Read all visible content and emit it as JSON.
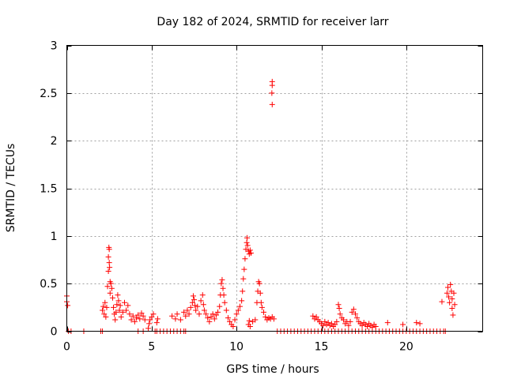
{
  "chart_data": {
    "type": "scatter",
    "title": "Day 182 of 2024, SRMTID for receiver larr",
    "xlabel": "GPS time / hours",
    "ylabel": "SRMTID / TECUs",
    "xlim": [
      0,
      24.5
    ],
    "ylim": [
      0,
      3
    ],
    "xticks": [
      0,
      5,
      10,
      15,
      20
    ],
    "xtick_labels": [
      "0",
      "5",
      "10",
      "15",
      "20"
    ],
    "yticks": [
      0,
      0.5,
      1,
      1.5,
      2,
      2.5,
      3
    ],
    "ytick_labels": [
      "0",
      "0.5",
      "1",
      "1.5",
      "2",
      "2.5",
      "3"
    ],
    "grid": true,
    "marker": "+",
    "marker_color": "#ff0000",
    "series": [
      {
        "name": "SRMTID",
        "points": [
          [
            0.0,
            0.37
          ],
          [
            0.0,
            0.31
          ],
          [
            0.05,
            0.27
          ],
          [
            0.1,
            0.0
          ],
          [
            0.25,
            0.0
          ],
          [
            1.0,
            0.0
          ],
          [
            2.0,
            0.0
          ],
          [
            2.1,
            0.0
          ],
          [
            2.1,
            0.22
          ],
          [
            2.15,
            0.26
          ],
          [
            2.2,
            0.18
          ],
          [
            2.25,
            0.3
          ],
          [
            2.3,
            0.15
          ],
          [
            2.35,
            0.25
          ],
          [
            2.4,
            0.47
          ],
          [
            2.45,
            0.63
          ],
          [
            2.45,
            0.78
          ],
          [
            2.48,
            0.88
          ],
          [
            2.5,
            0.86
          ],
          [
            2.5,
            0.72
          ],
          [
            2.52,
            0.67
          ],
          [
            2.55,
            0.52
          ],
          [
            2.55,
            0.4
          ],
          [
            2.6,
            0.5
          ],
          [
            2.65,
            0.45
          ],
          [
            2.7,
            0.35
          ],
          [
            2.75,
            0.25
          ],
          [
            2.8,
            0.18
          ],
          [
            2.85,
            0.12
          ],
          [
            2.9,
            0.2
          ],
          [
            2.95,
            0.28
          ],
          [
            3.0,
            0.38
          ],
          [
            3.05,
            0.32
          ],
          [
            3.1,
            0.22
          ],
          [
            3.15,
            0.27
          ],
          [
            3.2,
            0.15
          ],
          [
            3.3,
            0.2
          ],
          [
            3.4,
            0.3
          ],
          [
            3.5,
            0.22
          ],
          [
            3.6,
            0.27
          ],
          [
            3.7,
            0.18
          ],
          [
            3.8,
            0.12
          ],
          [
            3.9,
            0.16
          ],
          [
            4.0,
            0.1
          ],
          [
            4.1,
            0.14
          ],
          [
            4.2,
            0.17
          ],
          [
            4.3,
            0.13
          ],
          [
            4.4,
            0.19
          ],
          [
            4.5,
            0.16
          ],
          [
            4.6,
            0.12
          ],
          [
            4.2,
            0.0
          ],
          [
            4.5,
            0.0
          ],
          [
            4.8,
            0.03
          ],
          [
            4.85,
            0.08
          ],
          [
            4.9,
            0.12
          ],
          [
            5.0,
            0.15
          ],
          [
            5.1,
            0.18
          ],
          [
            5.2,
            0.0
          ],
          [
            5.3,
            0.09
          ],
          [
            5.35,
            0.13
          ],
          [
            5.3,
            0.0
          ],
          [
            5.5,
            0.0
          ],
          [
            5.7,
            0.0
          ],
          [
            5.9,
            0.0
          ],
          [
            6.1,
            0.0
          ],
          [
            6.3,
            0.0
          ],
          [
            6.5,
            0.0
          ],
          [
            6.7,
            0.0
          ],
          [
            6.9,
            0.0
          ],
          [
            7.0,
            0.0
          ],
          [
            6.2,
            0.16
          ],
          [
            6.4,
            0.13
          ],
          [
            6.5,
            0.18
          ],
          [
            6.7,
            0.12
          ],
          [
            6.9,
            0.2
          ],
          [
            7.0,
            0.16
          ],
          [
            7.1,
            0.22
          ],
          [
            7.2,
            0.18
          ],
          [
            7.3,
            0.25
          ],
          [
            7.4,
            0.3
          ],
          [
            7.45,
            0.37
          ],
          [
            7.5,
            0.33
          ],
          [
            7.55,
            0.27
          ],
          [
            7.6,
            0.22
          ],
          [
            7.7,
            0.26
          ],
          [
            7.8,
            0.18
          ],
          [
            7.9,
            0.32
          ],
          [
            8.0,
            0.38
          ],
          [
            8.05,
            0.28
          ],
          [
            8.1,
            0.22
          ],
          [
            8.2,
            0.18
          ],
          [
            8.3,
            0.14
          ],
          [
            8.4,
            0.1
          ],
          [
            8.5,
            0.15
          ],
          [
            8.6,
            0.18
          ],
          [
            8.7,
            0.13
          ],
          [
            8.8,
            0.17
          ],
          [
            8.9,
            0.2
          ],
          [
            9.0,
            0.26
          ],
          [
            9.05,
            0.38
          ],
          [
            9.1,
            0.5
          ],
          [
            9.15,
            0.54
          ],
          [
            9.2,
            0.45
          ],
          [
            9.25,
            0.38
          ],
          [
            9.3,
            0.3
          ],
          [
            9.4,
            0.22
          ],
          [
            9.5,
            0.14
          ],
          [
            9.6,
            0.1
          ],
          [
            9.7,
            0.07
          ],
          [
            9.8,
            0.05
          ],
          [
            9.9,
            0.12
          ],
          [
            10.0,
            0.18
          ],
          [
            10.1,
            0.22
          ],
          [
            10.2,
            0.26
          ],
          [
            10.3,
            0.32
          ],
          [
            10.35,
            0.42
          ],
          [
            10.4,
            0.55
          ],
          [
            10.45,
            0.65
          ],
          [
            10.5,
            0.76
          ],
          [
            10.55,
            0.86
          ],
          [
            10.6,
            0.93
          ],
          [
            10.62,
            0.98
          ],
          [
            10.65,
            0.9
          ],
          [
            10.7,
            0.84
          ],
          [
            10.75,
            0.81
          ],
          [
            10.8,
            0.85
          ],
          [
            10.85,
            0.82
          ],
          [
            10.7,
            0.07
          ],
          [
            10.75,
            0.11
          ],
          [
            10.8,
            0.05
          ],
          [
            10.95,
            0.1
          ],
          [
            11.1,
            0.12
          ],
          [
            11.2,
            0.3
          ],
          [
            11.25,
            0.42
          ],
          [
            11.3,
            0.52
          ],
          [
            11.35,
            0.5
          ],
          [
            11.4,
            0.4
          ],
          [
            11.45,
            0.3
          ],
          [
            11.5,
            0.25
          ],
          [
            11.6,
            0.2
          ],
          [
            11.7,
            0.15
          ],
          [
            11.8,
            0.12
          ],
          [
            11.9,
            0.14
          ],
          [
            12.0,
            0.13
          ],
          [
            12.1,
            0.15
          ],
          [
            12.2,
            0.13
          ],
          [
            12.1,
            2.62
          ],
          [
            12.1,
            2.58
          ],
          [
            12.08,
            2.5
          ],
          [
            12.1,
            2.38
          ],
          [
            12.4,
            0.0
          ],
          [
            12.6,
            0.0
          ],
          [
            12.8,
            0.0
          ],
          [
            13.0,
            0.0
          ],
          [
            13.2,
            0.0
          ],
          [
            13.4,
            0.0
          ],
          [
            13.6,
            0.0
          ],
          [
            13.8,
            0.0
          ],
          [
            14.0,
            0.0
          ],
          [
            14.2,
            0.0
          ],
          [
            14.4,
            0.0
          ],
          [
            14.6,
            0.0
          ],
          [
            14.8,
            0.0
          ],
          [
            15.0,
            0.0
          ],
          [
            15.2,
            0.0
          ],
          [
            15.4,
            0.0
          ],
          [
            15.6,
            0.0
          ],
          [
            15.8,
            0.0
          ],
          [
            16.0,
            0.0
          ],
          [
            16.2,
            0.0
          ],
          [
            16.4,
            0.0
          ],
          [
            16.6,
            0.0
          ],
          [
            16.8,
            0.0
          ],
          [
            17.0,
            0.0
          ],
          [
            17.2,
            0.0
          ],
          [
            17.4,
            0.0
          ],
          [
            17.6,
            0.0
          ],
          [
            17.8,
            0.0
          ],
          [
            18.0,
            0.0
          ],
          [
            18.2,
            0.0
          ],
          [
            18.4,
            0.0
          ],
          [
            18.6,
            0.0
          ],
          [
            18.8,
            0.0
          ],
          [
            19.0,
            0.0
          ],
          [
            19.2,
            0.0
          ],
          [
            19.4,
            0.0
          ],
          [
            19.6,
            0.0
          ],
          [
            19.8,
            0.0
          ],
          [
            20.0,
            0.0
          ],
          [
            20.2,
            0.0
          ],
          [
            20.4,
            0.0
          ],
          [
            20.6,
            0.0
          ],
          [
            20.8,
            0.0
          ],
          [
            21.0,
            0.0
          ],
          [
            21.2,
            0.0
          ],
          [
            21.4,
            0.0
          ],
          [
            21.6,
            0.0
          ],
          [
            21.8,
            0.0
          ],
          [
            22.0,
            0.0
          ],
          [
            22.2,
            0.0
          ],
          [
            22.3,
            0.0
          ],
          [
            14.5,
            0.16
          ],
          [
            14.6,
            0.13
          ],
          [
            14.7,
            0.15
          ],
          [
            14.8,
            0.12
          ],
          [
            14.9,
            0.1
          ],
          [
            15.0,
            0.08
          ],
          [
            15.1,
            0.06
          ],
          [
            15.2,
            0.1
          ],
          [
            15.3,
            0.07
          ],
          [
            15.4,
            0.09
          ],
          [
            15.5,
            0.06
          ],
          [
            15.6,
            0.08
          ],
          [
            15.7,
            0.05
          ],
          [
            15.8,
            0.07
          ],
          [
            15.9,
            0.1
          ],
          [
            16.0,
            0.28
          ],
          [
            16.05,
            0.24
          ],
          [
            16.1,
            0.18
          ],
          [
            16.2,
            0.14
          ],
          [
            16.3,
            0.12
          ],
          [
            16.4,
            0.08
          ],
          [
            16.5,
            0.1
          ],
          [
            16.6,
            0.06
          ],
          [
            16.7,
            0.1
          ],
          [
            16.8,
            0.2
          ],
          [
            16.9,
            0.23
          ],
          [
            17.0,
            0.18
          ],
          [
            17.1,
            0.14
          ],
          [
            17.2,
            0.1
          ],
          [
            17.3,
            0.08
          ],
          [
            17.4,
            0.06
          ],
          [
            17.5,
            0.09
          ],
          [
            17.6,
            0.07
          ],
          [
            17.7,
            0.05
          ],
          [
            17.8,
            0.08
          ],
          [
            17.9,
            0.06
          ],
          [
            18.0,
            0.04
          ],
          [
            18.1,
            0.07
          ],
          [
            18.2,
            0.05
          ],
          [
            18.9,
            0.09
          ],
          [
            19.8,
            0.07
          ],
          [
            20.6,
            0.09
          ],
          [
            20.8,
            0.08
          ],
          [
            22.1,
            0.31
          ],
          [
            22.4,
            0.4
          ],
          [
            22.45,
            0.46
          ],
          [
            22.5,
            0.36
          ],
          [
            22.55,
            0.3
          ],
          [
            22.6,
            0.49
          ],
          [
            22.65,
            0.42
          ],
          [
            22.7,
            0.34
          ],
          [
            22.7,
            0.24
          ],
          [
            22.75,
            0.17
          ],
          [
            22.8,
            0.4
          ],
          [
            22.85,
            0.28
          ]
        ]
      }
    ]
  }
}
